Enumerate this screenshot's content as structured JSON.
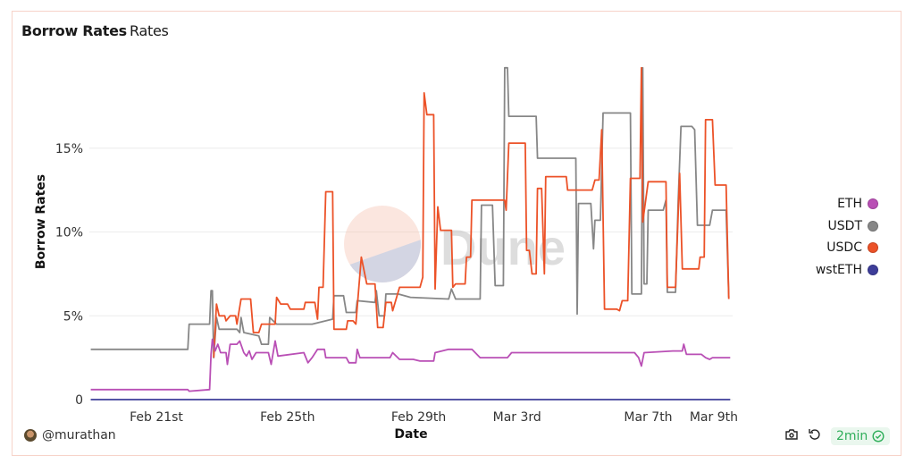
{
  "header": {
    "title": "Borrow Rates",
    "subtitle": "Rates"
  },
  "footer": {
    "author": "@murathan",
    "refresh_badge": "2min",
    "icons": [
      "camera-icon",
      "refresh-icon",
      "verified-check-icon"
    ]
  },
  "watermark": "Dune",
  "chart_data": {
    "type": "line",
    "xlabel": "Date",
    "ylabel": "Borrow Rates",
    "x_ticks": [
      "Feb 21st",
      "Feb 25th",
      "Feb 29th",
      "Mar 3rd",
      "Mar 7th",
      "Mar 9th"
    ],
    "x_tick_dates": [
      "02-21 00",
      "02-25 00",
      "02-29 00",
      "03-03 00",
      "03-07 00",
      "03-09 00"
    ],
    "y_ticks": [
      {
        "value": 0,
        "label": "0"
      },
      {
        "value": 5,
        "label": "5%"
      },
      {
        "value": 10,
        "label": "10%"
      },
      {
        "value": 15,
        "label": "15%"
      }
    ],
    "ylim": [
      0,
      20
    ],
    "xlim": [
      "02-19 00",
      "03-09 12"
    ],
    "grid": true,
    "legend_position": "right",
    "series": [
      {
        "name": "ETH",
        "color": "#b94fb5",
        "points": [
          [
            "02-19 00",
            0.6
          ],
          [
            "02-21 23",
            0.6
          ],
          [
            "02-22 00",
            0.5
          ],
          [
            "02-22 15",
            0.6
          ],
          [
            "02-22 16",
            2.7
          ],
          [
            "02-22 17",
            3.6
          ],
          [
            "02-22 19",
            2.9
          ],
          [
            "02-22 21",
            3.3
          ],
          [
            "02-22 23",
            2.8
          ],
          [
            "02-23 03",
            2.8
          ],
          [
            "02-23 04",
            2.1
          ],
          [
            "02-23 06",
            3.3
          ],
          [
            "02-23 11",
            3.3
          ],
          [
            "02-23 13",
            3.5
          ],
          [
            "02-23 16",
            2.8
          ],
          [
            "02-23 18",
            2.6
          ],
          [
            "02-23 20",
            2.9
          ],
          [
            "02-23 22",
            2.4
          ],
          [
            "02-24 01",
            2.8
          ],
          [
            "02-24 10",
            2.8
          ],
          [
            "02-24 12",
            2.1
          ],
          [
            "02-24 15",
            3.5
          ],
          [
            "02-24 17",
            2.6
          ],
          [
            "02-25 12",
            2.8
          ],
          [
            "02-25 15",
            2.2
          ],
          [
            "02-25 18",
            2.5
          ],
          [
            "02-25 22",
            3.0
          ],
          [
            "02-26 03",
            3.0
          ],
          [
            "02-26 04",
            2.5
          ],
          [
            "02-26 19",
            2.5
          ],
          [
            "02-26 21",
            2.2
          ],
          [
            "02-27 02",
            2.2
          ],
          [
            "02-27 03",
            3.0
          ],
          [
            "02-27 05",
            2.5
          ],
          [
            "02-28 03",
            2.5
          ],
          [
            "02-28 05",
            2.8
          ],
          [
            "02-28 10",
            2.4
          ],
          [
            "02-28 20",
            2.4
          ],
          [
            "02-29 01",
            2.3
          ],
          [
            "02-29 11",
            2.3
          ],
          [
            "02-29 12",
            2.8
          ],
          [
            "02-29 22",
            3.0
          ],
          [
            "03-01 15",
            3.0
          ],
          [
            "03-01 21",
            2.5
          ],
          [
            "03-02 17",
            2.5
          ],
          [
            "03-02 20",
            2.8
          ],
          [
            "03-06 14",
            2.8
          ],
          [
            "03-06 17",
            2.5
          ],
          [
            "03-06 19",
            2.0
          ],
          [
            "03-06 21",
            2.8
          ],
          [
            "03-07 18",
            2.9
          ],
          [
            "03-08 01",
            2.9
          ],
          [
            "03-08 02",
            3.3
          ],
          [
            "03-08 04",
            2.7
          ],
          [
            "03-08 15",
            2.7
          ],
          [
            "03-08 18",
            2.5
          ],
          [
            "03-08 21",
            2.4
          ],
          [
            "03-08 23",
            2.5
          ],
          [
            "03-09 12",
            2.5
          ]
        ]
      },
      {
        "name": "USDT",
        "color": "#878787",
        "points": [
          [
            "02-19 00",
            3.0
          ],
          [
            "02-21 23",
            3.0
          ],
          [
            "02-22 00",
            4.5
          ],
          [
            "02-22 15",
            4.5
          ],
          [
            "02-22 16",
            6.5
          ],
          [
            "02-22 17",
            6.5
          ],
          [
            "02-22 18",
            2.5
          ],
          [
            "02-22 20",
            4.9
          ],
          [
            "02-22 22",
            4.2
          ],
          [
            "02-23 11",
            4.2
          ],
          [
            "02-23 13",
            4.0
          ],
          [
            "02-23 14",
            4.9
          ],
          [
            "02-23 16",
            4.0
          ],
          [
            "02-24 03",
            3.8
          ],
          [
            "02-24 05",
            3.3
          ],
          [
            "02-24 10",
            3.3
          ],
          [
            "02-24 11",
            4.9
          ],
          [
            "02-24 16",
            4.5
          ],
          [
            "02-25 18",
            4.5
          ],
          [
            "02-26 09",
            4.8
          ],
          [
            "02-26 10",
            6.2
          ],
          [
            "02-26 17",
            6.2
          ],
          [
            "02-26 19",
            5.2
          ],
          [
            "02-27 02",
            5.2
          ],
          [
            "02-27 03",
            5.9
          ],
          [
            "02-27 16",
            5.8
          ],
          [
            "02-27 17",
            6.5
          ],
          [
            "02-27 19",
            5.0
          ],
          [
            "02-27 23",
            5.0
          ],
          [
            "02-28 00",
            6.3
          ],
          [
            "02-28 07",
            6.3
          ],
          [
            "02-28 09",
            6.3
          ],
          [
            "02-28 18",
            6.1
          ],
          [
            "02-29 22",
            6.0
          ],
          [
            "03-01 00",
            6.6
          ],
          [
            "03-01 03",
            6.0
          ],
          [
            "03-01 21",
            6.0
          ],
          [
            "03-01 22",
            11.6
          ],
          [
            "03-02 06",
            11.6
          ],
          [
            "03-02 08",
            6.8
          ],
          [
            "03-02 14",
            6.8
          ],
          [
            "03-02 15",
            19.8
          ],
          [
            "03-02 17",
            19.8
          ],
          [
            "03-02 18",
            16.9
          ],
          [
            "03-03 14",
            16.9
          ],
          [
            "03-03 15",
            14.4
          ],
          [
            "03-04 19",
            14.4
          ],
          [
            "03-04 20",
            5.1
          ],
          [
            "03-04 21",
            11.7
          ],
          [
            "03-05 06",
            11.7
          ],
          [
            "03-05 08",
            9.0
          ],
          [
            "03-05 09",
            10.7
          ],
          [
            "03-05 13",
            10.7
          ],
          [
            "03-05 15",
            17.1
          ],
          [
            "03-06 11",
            17.1
          ],
          [
            "03-06 12",
            6.3
          ],
          [
            "03-06 19",
            6.3
          ],
          [
            "03-06 20",
            19.8
          ],
          [
            "03-06 21",
            6.9
          ],
          [
            "03-06 23",
            6.9
          ],
          [
            "03-07 00",
            11.3
          ],
          [
            "03-07 11",
            11.3
          ],
          [
            "03-07 13",
            11.9
          ],
          [
            "03-07 14",
            6.4
          ],
          [
            "03-07 20",
            6.4
          ],
          [
            "03-07 22",
            11.9
          ],
          [
            "03-08 00",
            16.3
          ],
          [
            "03-08 08",
            16.3
          ],
          [
            "03-08 10",
            16.1
          ],
          [
            "03-08 12",
            10.4
          ],
          [
            "03-08 21",
            10.4
          ],
          [
            "03-08 23",
            11.3
          ],
          [
            "03-09 09",
            11.3
          ],
          [
            "03-09 11",
            6.1
          ]
        ]
      },
      {
        "name": "USDC",
        "color": "#ec5228",
        "points": [
          [
            "02-22 18",
            2.5
          ],
          [
            "02-22 20",
            5.7
          ],
          [
            "02-22 22",
            5.0
          ],
          [
            "02-23 02",
            5.0
          ],
          [
            "02-23 03",
            4.7
          ],
          [
            "02-23 06",
            5.0
          ],
          [
            "02-23 10",
            5.0
          ],
          [
            "02-23 11",
            4.5
          ],
          [
            "02-23 14",
            6.0
          ],
          [
            "02-23 21",
            6.0
          ],
          [
            "02-23 23",
            4.0
          ],
          [
            "02-24 03",
            4.0
          ],
          [
            "02-24 05",
            4.5
          ],
          [
            "02-24 15",
            4.5
          ],
          [
            "02-24 16",
            6.1
          ],
          [
            "02-24 19",
            5.7
          ],
          [
            "02-25 00",
            5.7
          ],
          [
            "02-25 02",
            5.4
          ],
          [
            "02-25 12",
            5.4
          ],
          [
            "02-25 13",
            5.8
          ],
          [
            "02-25 20",
            5.8
          ],
          [
            "02-25 22",
            4.8
          ],
          [
            "02-25 23",
            6.7
          ],
          [
            "02-26 02",
            6.7
          ],
          [
            "02-26 04",
            12.4
          ],
          [
            "02-26 09",
            12.4
          ],
          [
            "02-26 10",
            4.2
          ],
          [
            "02-26 19",
            4.2
          ],
          [
            "02-26 20",
            4.7
          ],
          [
            "02-27 00",
            4.7
          ],
          [
            "02-27 02",
            4.5
          ],
          [
            "02-27 06",
            8.5
          ],
          [
            "02-27 10",
            6.9
          ],
          [
            "02-27 16",
            6.9
          ],
          [
            "02-27 18",
            4.3
          ],
          [
            "02-27 22",
            4.3
          ],
          [
            "02-28 00",
            5.8
          ],
          [
            "02-28 04",
            5.8
          ],
          [
            "02-28 05",
            5.3
          ],
          [
            "02-28 10",
            6.7
          ],
          [
            "02-29 01",
            6.7
          ],
          [
            "02-29 03",
            7.3
          ],
          [
            "02-29 04",
            18.3
          ],
          [
            "02-29 06",
            17.0
          ],
          [
            "02-29 11",
            17.0
          ],
          [
            "02-29 12",
            6.6
          ],
          [
            "02-29 14",
            11.5
          ],
          [
            "02-29 16",
            10.1
          ],
          [
            "03-01 00",
            10.1
          ],
          [
            "03-01 01",
            6.7
          ],
          [
            "03-01 03",
            6.9
          ],
          [
            "03-01 10",
            6.9
          ],
          [
            "03-01 11",
            8.5
          ],
          [
            "03-01 14",
            8.5
          ],
          [
            "03-01 15",
            11.9
          ],
          [
            "03-02 15",
            11.9
          ],
          [
            "03-02 16",
            11.3
          ],
          [
            "03-02 18",
            15.3
          ],
          [
            "03-03 06",
            15.3
          ],
          [
            "03-03 07",
            8.9
          ],
          [
            "03-03 09",
            8.9
          ],
          [
            "03-03 11",
            7.5
          ],
          [
            "03-03 14",
            7.5
          ],
          [
            "03-03 15",
            12.6
          ],
          [
            "03-03 18",
            12.6
          ],
          [
            "03-03 20",
            7.5
          ],
          [
            "03-03 21",
            13.3
          ],
          [
            "03-04 12",
            13.3
          ],
          [
            "03-04 13",
            12.5
          ],
          [
            "03-05 07",
            12.5
          ],
          [
            "03-05 09",
            13.1
          ],
          [
            "03-05 12",
            13.1
          ],
          [
            "03-05 14",
            16.1
          ],
          [
            "03-05 16",
            5.4
          ],
          [
            "03-06 01",
            5.4
          ],
          [
            "03-06 03",
            5.3
          ],
          [
            "03-06 05",
            5.9
          ],
          [
            "03-06 09",
            5.9
          ],
          [
            "03-06 11",
            13.2
          ],
          [
            "03-06 18",
            13.2
          ],
          [
            "03-06 19",
            19.8
          ],
          [
            "03-06 20",
            10.6
          ],
          [
            "03-07 00",
            13.0
          ],
          [
            "03-07 13",
            13.0
          ],
          [
            "03-07 14",
            6.7
          ],
          [
            "03-07 20",
            6.7
          ],
          [
            "03-07 23",
            13.5
          ],
          [
            "03-08 01",
            7.8
          ],
          [
            "03-08 13",
            7.8
          ],
          [
            "03-08 14",
            8.5
          ],
          [
            "03-08 17",
            8.5
          ],
          [
            "03-08 18",
            16.7
          ],
          [
            "03-08 23",
            16.7
          ],
          [
            "03-09 01",
            12.8
          ],
          [
            "03-09 09",
            12.8
          ],
          [
            "03-09 11",
            6.0
          ]
        ]
      },
      {
        "name": "wstETH",
        "color": "#3d3d99",
        "points": [
          [
            "02-19 00",
            0
          ],
          [
            "03-09 12",
            0
          ]
        ]
      }
    ]
  }
}
